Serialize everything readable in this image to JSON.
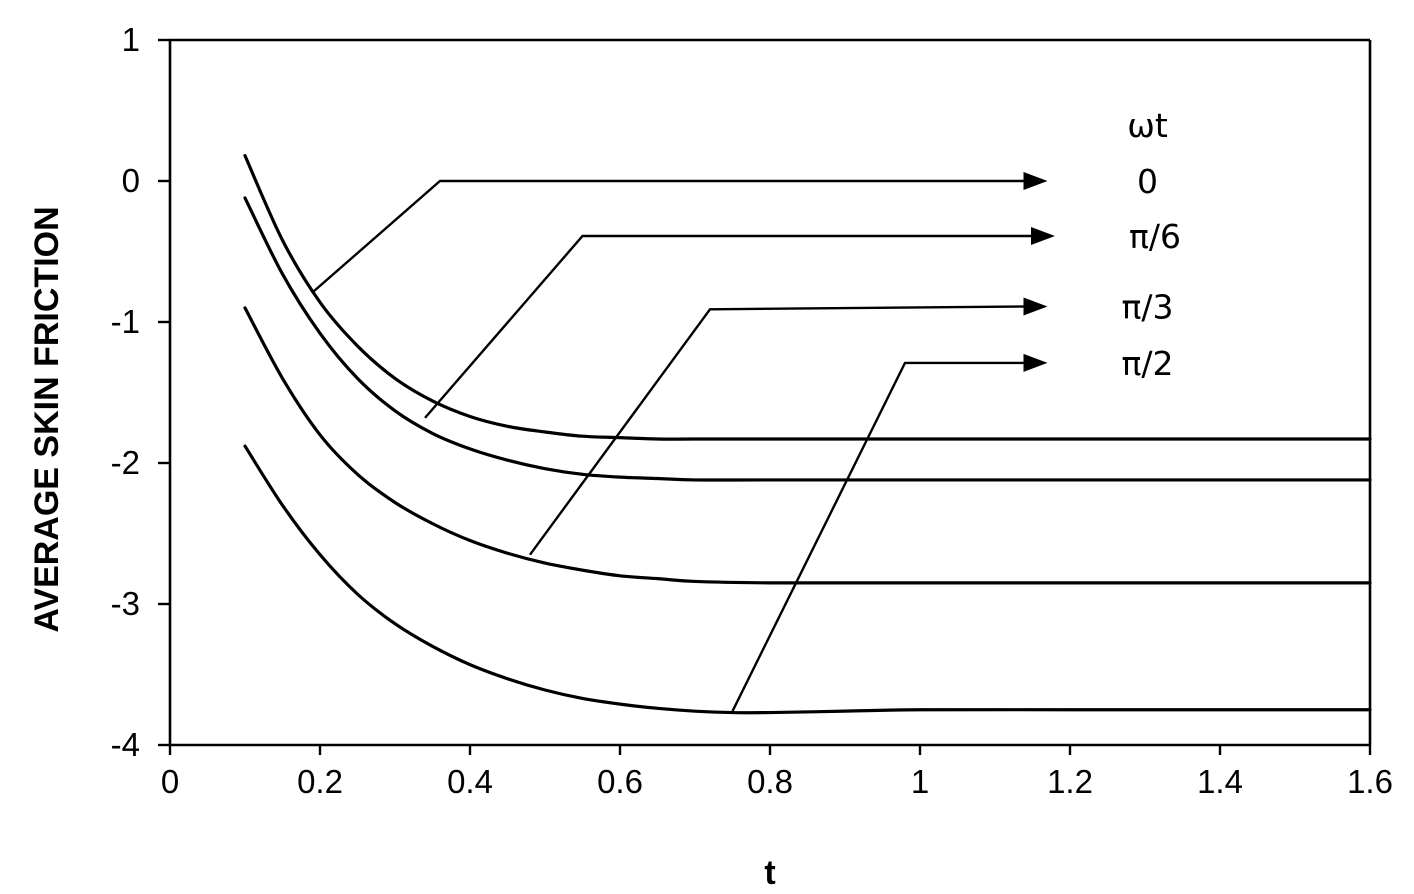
{
  "chart_data": {
    "type": "line",
    "title": "",
    "xlabel": "t",
    "ylabel": "AVERAGE SKIN FRICTION",
    "xlim": [
      0,
      1.6
    ],
    "ylim": [
      -4,
      1
    ],
    "xticks": [
      0,
      0.2,
      0.4,
      0.6,
      0.8,
      1,
      1.2,
      1.4,
      1.6
    ],
    "xtick_labels": [
      "0",
      "0.2",
      "0.4",
      "0.6",
      "0.8",
      "1",
      "1.2",
      "1.4",
      "1.6"
    ],
    "yticks": [
      1,
      0,
      -1,
      -2,
      -3,
      -4
    ],
    "ytick_labels": [
      "1",
      "0",
      "-1",
      "-2",
      "-3",
      "-4"
    ],
    "grid": false,
    "legend_title": "ωt",
    "series": [
      {
        "name": "0",
        "x": [
          0.1,
          0.15,
          0.2,
          0.25,
          0.3,
          0.35,
          0.4,
          0.45,
          0.5,
          0.55,
          0.6,
          0.65,
          0.7,
          0.8,
          1.0,
          1.2,
          1.4,
          1.6
        ],
        "values": [
          0.18,
          -0.42,
          -0.86,
          -1.17,
          -1.4,
          -1.56,
          -1.67,
          -1.74,
          -1.78,
          -1.81,
          -1.82,
          -1.83,
          -1.83,
          -1.83,
          -1.83,
          -1.83,
          -1.83,
          -1.83
        ]
      },
      {
        "name": "π/6",
        "x": [
          0.1,
          0.15,
          0.2,
          0.25,
          0.3,
          0.35,
          0.4,
          0.45,
          0.5,
          0.55,
          0.6,
          0.65,
          0.7,
          0.8,
          1.0,
          1.2,
          1.4,
          1.6
        ],
        "values": [
          -0.12,
          -0.66,
          -1.08,
          -1.4,
          -1.63,
          -1.79,
          -1.9,
          -1.98,
          -2.04,
          -2.08,
          -2.1,
          -2.11,
          -2.12,
          -2.12,
          -2.12,
          -2.12,
          -2.12,
          -2.12
        ]
      },
      {
        "name": "π/3",
        "x": [
          0.1,
          0.15,
          0.2,
          0.25,
          0.3,
          0.35,
          0.4,
          0.45,
          0.5,
          0.55,
          0.6,
          0.65,
          0.7,
          0.8,
          1.0,
          1.2,
          1.4,
          1.6
        ],
        "values": [
          -0.9,
          -1.4,
          -1.8,
          -2.08,
          -2.28,
          -2.43,
          -2.55,
          -2.64,
          -2.71,
          -2.76,
          -2.8,
          -2.82,
          -2.84,
          -2.85,
          -2.85,
          -2.85,
          -2.85,
          -2.85
        ]
      },
      {
        "name": "π/2",
        "x": [
          0.1,
          0.15,
          0.2,
          0.25,
          0.3,
          0.35,
          0.4,
          0.45,
          0.5,
          0.55,
          0.6,
          0.65,
          0.7,
          0.75,
          0.8,
          0.9,
          1.0,
          1.2,
          1.4,
          1.6
        ],
        "values": [
          -1.88,
          -2.3,
          -2.65,
          -2.93,
          -3.14,
          -3.3,
          -3.43,
          -3.53,
          -3.61,
          -3.67,
          -3.71,
          -3.74,
          -3.76,
          -3.77,
          -3.77,
          -3.76,
          -3.75,
          -3.75,
          -3.75,
          -3.75
        ]
      }
    ],
    "annotations": [
      {
        "label": "0",
        "series": 0,
        "from": [
          0.19,
          -0.79
        ],
        "elbow": [
          0.36,
          0.0
        ],
        "to": [
          1.17,
          0.0
        ]
      },
      {
        "label": "π/6",
        "series": 1,
        "from": [
          0.34,
          -1.68
        ],
        "elbow": [
          0.55,
          -0.39
        ],
        "to": [
          1.18,
          -0.39
        ]
      },
      {
        "label": "π/3",
        "series": 2,
        "from": [
          0.48,
          -2.65
        ],
        "elbow": [
          0.72,
          -0.91
        ],
        "to": [
          1.17,
          -0.89
        ]
      },
      {
        "label": "π/2",
        "series": 3,
        "from": [
          0.75,
          -3.76
        ],
        "elbow": [
          0.98,
          -1.29
        ],
        "to": [
          1.17,
          -1.29
        ]
      }
    ]
  }
}
